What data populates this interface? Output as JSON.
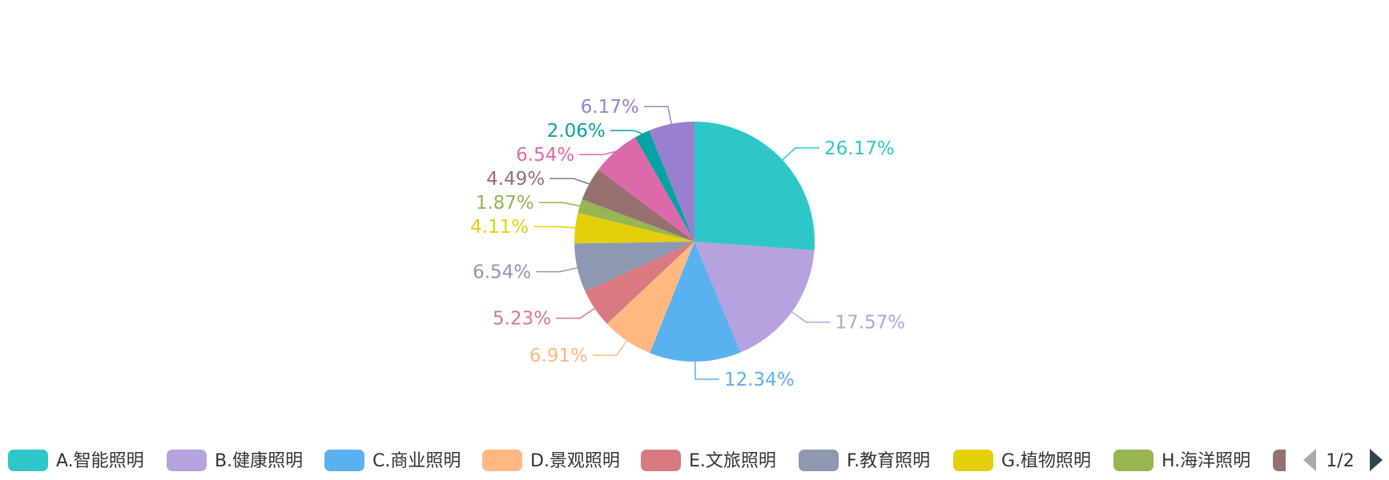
{
  "chart_data": {
    "type": "pie",
    "title": "",
    "start_angle_deg": 90,
    "slices": [
      {
        "label": "A.智能照明",
        "value": 26.17,
        "display": "26.17%",
        "color": "#2ec7c9"
      },
      {
        "label": "B.健康照明",
        "value": 17.57,
        "display": "17.57%",
        "color": "#b6a2de"
      },
      {
        "label": "C.商业照明",
        "value": 12.34,
        "display": "12.34%",
        "color": "#5ab1ef"
      },
      {
        "label": "D.景观照明",
        "value": 6.91,
        "display": "6.91%",
        "color": "#ffb980"
      },
      {
        "label": "E.文旅照明",
        "value": 5.23,
        "display": "5.23%",
        "color": "#d87a80"
      },
      {
        "label": "F.教育照明",
        "value": 6.54,
        "display": "6.54%",
        "color": "#8d98b3"
      },
      {
        "label": "G.植物照明",
        "value": 4.11,
        "display": "4.11%",
        "color": "#e5cf0d"
      },
      {
        "label": "H.海洋照明",
        "value": 1.87,
        "display": "1.87%",
        "color": "#97b552"
      },
      {
        "label": "",
        "value": 4.49,
        "display": "4.49%",
        "color": "#95706d"
      },
      {
        "label": "",
        "value": 6.54,
        "display": "6.54%",
        "color": "#dc69aa"
      },
      {
        "label": "",
        "value": 2.06,
        "display": "2.06%",
        "color": "#07a2a4"
      },
      {
        "label": "",
        "value": 6.17,
        "display": "6.17%",
        "color": "#9a7fd1"
      }
    ],
    "legend": {
      "position": "bottom",
      "visible_items": 9,
      "page": "1/2"
    }
  },
  "legend_pager": {
    "page_text": "1/2",
    "prev_icon": "triangle-left-icon",
    "next_icon": "triangle-right-icon",
    "prev_color": "#aaaaaa",
    "next_color": "#2f4554"
  }
}
